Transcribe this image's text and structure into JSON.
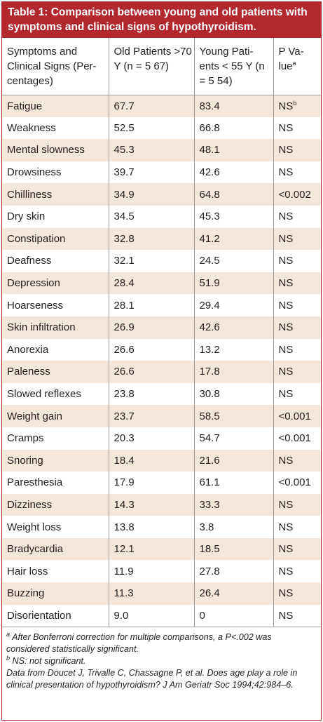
{
  "title": "Table 1: Comparison between young and old patients with symptoms and clinical signs of hypothyroidism.",
  "headers": {
    "col1": "Symptoms and Clinical Signs (Per-centages)",
    "col2": "Old Patients >70 Y (n = 5 67)",
    "col3": "Young Pati-ents < 55 Y (n = 5 54)",
    "col4": "P Va-lue",
    "col4_sup": "a"
  },
  "rows": [
    {
      "sign": "Fatigue",
      "old": "67.7",
      "young": "83.4",
      "p": "NS",
      "p_sup": "b"
    },
    {
      "sign": "Weakness",
      "old": "52.5",
      "young": "66.8",
      "p": "NS"
    },
    {
      "sign": "Mental slowness",
      "old": "45.3",
      "young": "48.1",
      "p": "NS"
    },
    {
      "sign": "Drowsiness",
      "old": "39.7",
      "young": "42.6",
      "p": "NS"
    },
    {
      "sign": "Chilliness",
      "old": "34.9",
      "young": "64.8",
      "p": "<0.002"
    },
    {
      "sign": "Dry skin",
      "old": "34.5",
      "young": "45.3",
      "p": "NS"
    },
    {
      "sign": "Constipation",
      "old": "32.8",
      "young": "41.2",
      "p": "NS"
    },
    {
      "sign": "Deafness",
      "old": "32.1",
      "young": "24.5",
      "p": "NS"
    },
    {
      "sign": "Depression",
      "old": "28.4",
      "young": "51.9",
      "p": "NS"
    },
    {
      "sign": "Hoarseness",
      "old": "28.1",
      "young": "29.4",
      "p": "NS"
    },
    {
      "sign": "Skin infiltration",
      "old": "26.9",
      "young": "42.6",
      "p": "NS"
    },
    {
      "sign": "Anorexia",
      "old": "26.6",
      "young": "13.2",
      "p": "NS"
    },
    {
      "sign": "Paleness",
      "old": "26.6",
      "young": "17.8",
      "p": "NS"
    },
    {
      "sign": "Slowed reflexes",
      "old": "23.8",
      "young": "30.8",
      "p": "NS"
    },
    {
      "sign": "Weight gain",
      "old": "23.7",
      "young": "58.5",
      "p": "<0.001"
    },
    {
      "sign": "Cramps",
      "old": "20.3",
      "young": "54.7",
      "p": "<0.001"
    },
    {
      "sign": "Snoring",
      "old": "18.4",
      "young": "21.6",
      "p": "NS"
    },
    {
      "sign": "Paresthesia",
      "old": "17.9",
      "young": "61.1",
      "p": "<0.001"
    },
    {
      "sign": "Dizziness",
      "old": "14.3",
      "young": "33.3",
      "p": "NS"
    },
    {
      "sign": "Weight loss",
      "old": "13.8",
      "young": "3.8",
      "p": "NS"
    },
    {
      "sign": "Bradycardia",
      "old": "12.1",
      "young": "18.5",
      "p": "NS"
    },
    {
      "sign": "Hair loss",
      "old": "11.9",
      "young": "27.8",
      "p": "NS"
    },
    {
      "sign": "Buzzing",
      "old": "11.3",
      "young": "26.4",
      "p": "NS"
    },
    {
      "sign": "Disorientation",
      "old": "9.0",
      "young": "0",
      "p": "NS"
    }
  ],
  "footnotes": {
    "a_marker": "a",
    "a_text": "After Bonferroni correction for multiple comparisons, a P<.002 was considered statistically significant.",
    "b_marker": "b",
    "b_text": "NS: not significant.",
    "source": "Data from Doucet J, Trivalle C, Chassagne P, et al. Does age play a role in clinical presentation of hypothyroidism? J Am Geriatr Soc 1994;42:984–6."
  },
  "colors": {
    "accent": "#b3282d",
    "row_shade": "#f5e6dc",
    "rule": "#9a9a9a"
  }
}
